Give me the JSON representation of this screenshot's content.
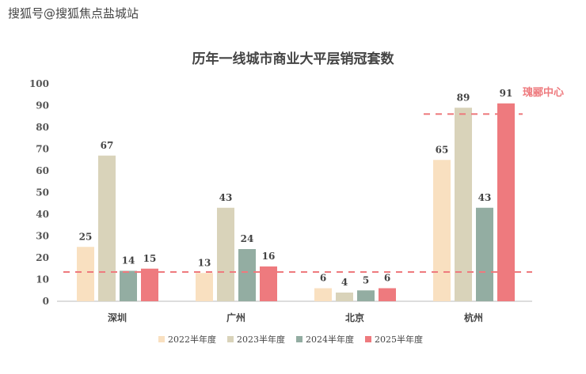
{
  "watermark": "搜狐号@搜狐焦点盐城站",
  "chart_data": {
    "type": "bar",
    "title": "历年一线城市商业大平层销冠套数",
    "categories": [
      "深圳",
      "广州",
      "北京",
      "杭州"
    ],
    "series": [
      {
        "name": "2022半年度",
        "color": "#F9E0C0",
        "values": [
          25,
          13,
          6,
          65
        ]
      },
      {
        "name": "2023半年度",
        "color": "#D9D3BA",
        "values": [
          67,
          43,
          4,
          89
        ]
      },
      {
        "name": "2024半年度",
        "color": "#93ADA2",
        "values": [
          14,
          24,
          5,
          43
        ]
      },
      {
        "name": "2025半年度",
        "color": "#EE7A7E",
        "values": [
          15,
          16,
          6,
          91
        ]
      }
    ],
    "ylim": [
      0,
      100
    ],
    "yticks": [
      0,
      10,
      20,
      30,
      40,
      50,
      60,
      70,
      80,
      90,
      100
    ],
    "reference_lines": [
      {
        "value": 16,
        "scope": "all"
      },
      {
        "value": 89,
        "scope": "杭州",
        "label": "瑰郦中心"
      }
    ],
    "legend": "bottom"
  }
}
